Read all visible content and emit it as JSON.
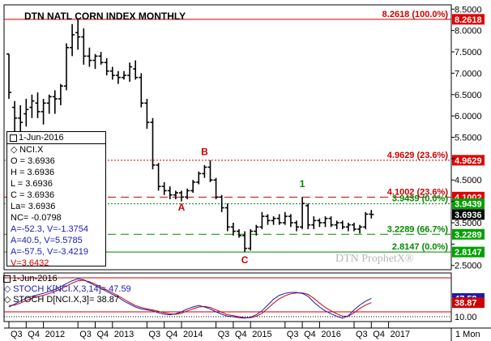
{
  "chart_data": {
    "type": "ohlc",
    "title": "DTN NATL CORN INDEX MONTHLY",
    "watermark": "DTN ProphetX®",
    "y_ticks": [
      2.5,
      3.0,
      3.5,
      4.0,
      4.5,
      5.0,
      5.5,
      6.0,
      6.5,
      7.0,
      7.5,
      8.0,
      8.5
    ],
    "y_tick_labels": [
      "2.5000",
      "3.0000",
      "3.5000",
      "4.0000",
      "4.5000",
      "5.0000",
      "5.5000",
      "6.0000",
      "6.5000",
      "7.0000",
      "7.5000",
      "8.0000",
      "8.5000"
    ],
    "ylim": [
      2.4,
      8.6
    ],
    "x_ticks": [
      {
        "label": "Q3",
        "index": 0
      },
      {
        "label": "Q4",
        "index": 3
      },
      {
        "label": "2012",
        "index": 6
      },
      {
        "label": "Q3",
        "index": 12
      },
      {
        "label": "Q4",
        "index": 15
      },
      {
        "label": "2013",
        "index": 18
      },
      {
        "label": "Q3",
        "index": 24
      },
      {
        "label": "Q4",
        "index": 27
      },
      {
        "label": "2014",
        "index": 30
      },
      {
        "label": "Q3",
        "index": 36
      },
      {
        "label": "Q4",
        "index": 39
      },
      {
        "label": "2015",
        "index": 42
      },
      {
        "label": "Q3",
        "index": 48
      },
      {
        "label": "Q4",
        "index": 51
      },
      {
        "label": "2016",
        "index": 54
      },
      {
        "label": "Q3",
        "index": 60
      },
      {
        "label": "Q4",
        "index": 63
      },
      {
        "label": "2017",
        "index": 66
      }
    ],
    "period_label": "1 Mon",
    "bars": [
      {
        "o": 7.45,
        "h": 7.45,
        "l": 6.4,
        "c": 6.55
      },
      {
        "o": 6.2,
        "h": 6.35,
        "l": 5.6,
        "c": 5.95
      },
      {
        "o": 5.95,
        "h": 6.25,
        "l": 5.6,
        "c": 5.85
      },
      {
        "o": 6.05,
        "h": 6.4,
        "l": 5.75,
        "c": 6.15
      },
      {
        "o": 6.2,
        "h": 6.5,
        "l": 5.95,
        "c": 6.35
      },
      {
        "o": 6.3,
        "h": 6.55,
        "l": 5.95,
        "c": 6.1
      },
      {
        "o": 6.1,
        "h": 6.4,
        "l": 5.8,
        "c": 6.3
      },
      {
        "o": 6.3,
        "h": 6.5,
        "l": 6.05,
        "c": 6.45
      },
      {
        "o": 6.45,
        "h": 6.6,
        "l": 6.05,
        "c": 6.4
      },
      {
        "o": 6.4,
        "h": 6.75,
        "l": 6.25,
        "c": 6.7
      },
      {
        "o": 6.7,
        "h": 7.7,
        "l": 6.6,
        "c": 7.6
      },
      {
        "o": 7.6,
        "h": 8.15,
        "l": 7.4,
        "c": 7.9
      },
      {
        "o": 7.95,
        "h": 8.2618,
        "l": 7.55,
        "c": 7.85
      },
      {
        "o": 7.85,
        "h": 8.05,
        "l": 7.2,
        "c": 7.4
      },
      {
        "o": 7.4,
        "h": 7.6,
        "l": 7.15,
        "c": 7.3
      },
      {
        "o": 7.3,
        "h": 7.45,
        "l": 7.1,
        "c": 7.4
      },
      {
        "o": 7.4,
        "h": 7.5,
        "l": 7.2,
        "c": 7.25
      },
      {
        "o": 7.25,
        "h": 7.35,
        "l": 6.95,
        "c": 7.05
      },
      {
        "o": 7.05,
        "h": 7.15,
        "l": 6.85,
        "c": 6.95
      },
      {
        "o": 6.95,
        "h": 7.05,
        "l": 6.75,
        "c": 6.9
      },
      {
        "o": 6.9,
        "h": 7.05,
        "l": 6.85,
        "c": 6.95
      },
      {
        "o": 6.95,
        "h": 7.25,
        "l": 6.8,
        "c": 7.15
      },
      {
        "o": 7.1,
        "h": 7.3,
        "l": 6.85,
        "c": 6.9
      },
      {
        "o": 6.9,
        "h": 7.0,
        "l": 6.2,
        "c": 6.3
      },
      {
        "o": 6.3,
        "h": 6.4,
        "l": 5.7,
        "c": 5.85
      },
      {
        "o": 5.85,
        "h": 5.95,
        "l": 4.75,
        "c": 4.85
      },
      {
        "o": 4.85,
        "h": 4.9,
        "l": 4.25,
        "c": 4.35
      },
      {
        "o": 4.35,
        "h": 4.45,
        "l": 4.15,
        "c": 4.25
      },
      {
        "o": 4.25,
        "h": 4.35,
        "l": 4.05,
        "c": 4.15
      },
      {
        "o": 4.15,
        "h": 4.25,
        "l": 4.05,
        "c": 4.2
      },
      {
        "o": 4.2,
        "h": 4.25,
        "l": 4.0,
        "c": 4.1
      },
      {
        "o": 4.1,
        "h": 4.3,
        "l": 4.05,
        "c": 4.25
      },
      {
        "o": 4.25,
        "h": 4.5,
        "l": 4.2,
        "c": 4.45
      },
      {
        "o": 4.45,
        "h": 4.7,
        "l": 4.4,
        "c": 4.65
      },
      {
        "o": 4.65,
        "h": 4.85,
        "l": 4.55,
        "c": 4.8
      },
      {
        "o": 4.8,
        "h": 4.9629,
        "l": 4.45,
        "c": 4.5
      },
      {
        "o": 4.5,
        "h": 4.55,
        "l": 4.05,
        "c": 4.1
      },
      {
        "o": 4.1,
        "h": 4.15,
        "l": 3.75,
        "c": 3.85
      },
      {
        "o": 3.85,
        "h": 3.95,
        "l": 3.3,
        "c": 3.4
      },
      {
        "o": 3.4,
        "h": 3.5,
        "l": 3.2,
        "c": 3.3
      },
      {
        "o": 3.3,
        "h": 3.35,
        "l": 3.15,
        "c": 3.2
      },
      {
        "o": 3.2,
        "h": 3.3,
        "l": 2.8147,
        "c": 2.9
      },
      {
        "o": 2.9,
        "h": 3.35,
        "l": 2.85,
        "c": 3.3
      },
      {
        "o": 3.3,
        "h": 3.45,
        "l": 3.2,
        "c": 3.4
      },
      {
        "o": 3.4,
        "h": 3.75,
        "l": 3.35,
        "c": 3.65
      },
      {
        "o": 3.65,
        "h": 3.7,
        "l": 3.45,
        "c": 3.55
      },
      {
        "o": 3.55,
        "h": 3.65,
        "l": 3.45,
        "c": 3.6
      },
      {
        "o": 3.6,
        "h": 3.7,
        "l": 3.45,
        "c": 3.5
      },
      {
        "o": 3.5,
        "h": 3.75,
        "l": 3.45,
        "c": 3.65
      },
      {
        "o": 3.65,
        "h": 3.7,
        "l": 3.4,
        "c": 3.5
      },
      {
        "o": 3.5,
        "h": 3.55,
        "l": 3.3,
        "c": 3.4
      },
      {
        "o": 3.4,
        "h": 4.1002,
        "l": 3.35,
        "c": 3.95
      },
      {
        "o": 3.9,
        "h": 3.95,
        "l": 3.35,
        "c": 3.45
      },
      {
        "o": 3.45,
        "h": 3.65,
        "l": 3.35,
        "c": 3.55
      },
      {
        "o": 3.55,
        "h": 3.6,
        "l": 3.4,
        "c": 3.5
      },
      {
        "o": 3.5,
        "h": 3.65,
        "l": 3.4,
        "c": 3.6
      },
      {
        "o": 3.6,
        "h": 3.65,
        "l": 3.4,
        "c": 3.45
      },
      {
        "o": 3.45,
        "h": 3.55,
        "l": 3.35,
        "c": 3.5
      },
      {
        "o": 3.5,
        "h": 3.55,
        "l": 3.35,
        "c": 3.4
      },
      {
        "o": 3.4,
        "h": 3.5,
        "l": 3.3,
        "c": 3.45
      },
      {
        "o": 3.45,
        "h": 3.5,
        "l": 3.3,
        "c": 3.35
      },
      {
        "o": 3.35,
        "h": 3.45,
        "l": 3.25,
        "c": 3.4
      },
      {
        "o": 3.4,
        "h": 3.75,
        "l": 3.35,
        "c": 3.7
      },
      {
        "o": 3.7,
        "h": 3.8,
        "l": 3.6,
        "c": 3.6936
      }
    ],
    "levels": [
      {
        "value": 8.2618,
        "label": "8.2618 (100.0%)",
        "axis_label": "8.2618",
        "color": "#cc0000",
        "style": "solid",
        "text_color": "#cc0000",
        "box_color": "#e00000"
      },
      {
        "value": 4.9629,
        "label": "4.9629 (23.6%)",
        "axis_label": "4.9629",
        "color": "#cc0000",
        "style": "dotted",
        "text_color": "#cc0000",
        "box_color": "#e00000"
      },
      {
        "value": 4.1002,
        "label": "4.1002 (23.6%)",
        "axis_label": "4.1002",
        "color": "#cc0000",
        "style": "longdash",
        "text_color": "#cc0000",
        "box_color": "#e00000"
      },
      {
        "value": 3.9439,
        "label": "3.9439 (0.0%)",
        "axis_label": "3.9439",
        "color": "#008800",
        "style": "dotted",
        "text_color": "#008800",
        "box_color": "#00a000"
      },
      {
        "value": 3.2289,
        "label": "3.2289 (66.7%)",
        "axis_label": "3.2289",
        "color": "#008800",
        "style": "longdash",
        "text_color": "#008800",
        "box_color": "#00a000"
      },
      {
        "value": 2.8147,
        "label": "2.8147 (0.0%)",
        "axis_label": "2.8147",
        "color": "#008800",
        "style": "solid",
        "text_color": "#008800",
        "box_color": "#00a000"
      }
    ],
    "last_price_label": "3.6936",
    "annotations": [
      {
        "text": "B",
        "bar": 34,
        "price": 5.08,
        "color": "#cc0000"
      },
      {
        "text": "A",
        "bar": 30,
        "price": 3.78,
        "color": "#cc0000"
      },
      {
        "text": "C",
        "bar": 41,
        "price": 2.55,
        "color": "#cc0000"
      },
      {
        "text": "1",
        "bar": 51,
        "price": 4.33,
        "color": "#008800"
      }
    ],
    "stochastic": {
      "ylim": [
        0,
        100
      ],
      "tick_value": 10,
      "tick_label": "10.00",
      "upper_band": 90,
      "lower_band": 20,
      "k_last_label": "47.59",
      "d_last_label": "38.87",
      "k_color": "#1a1ab8",
      "d_color": "#cc0000",
      "k": [
        30,
        36,
        42,
        48,
        52,
        55,
        58,
        62,
        66,
        72,
        78,
        84,
        88,
        86,
        80,
        74,
        68,
        62,
        56,
        50,
        42,
        36,
        30,
        26,
        24,
        22,
        18,
        15,
        14,
        16,
        20,
        26,
        30,
        33,
        30,
        26,
        20,
        15,
        11,
        10,
        8,
        7,
        9,
        14,
        22,
        34,
        46,
        54,
        58,
        60,
        60,
        58,
        52,
        40,
        30,
        22,
        16,
        11,
        7,
        12,
        24,
        34,
        42,
        47.59
      ],
      "d": [
        33,
        34,
        38,
        43,
        48,
        51,
        54,
        58,
        62,
        67,
        73,
        79,
        84,
        85,
        82,
        77,
        71,
        65,
        59,
        53,
        46,
        39,
        33,
        29,
        26,
        24,
        21,
        18,
        16,
        15,
        17,
        22,
        26,
        30,
        31,
        29,
        24,
        19,
        14,
        12,
        10,
        8,
        8,
        11,
        17,
        27,
        38,
        47,
        53,
        57,
        59,
        59,
        56,
        48,
        38,
        29,
        22,
        16,
        11,
        11,
        18,
        27,
        34,
        38.87
      ]
    }
  },
  "info_box": {
    "date": "1-Jun-2016",
    "symbol": "NCI.X",
    "open": "O = 3.6936",
    "high": "H = 3.6936",
    "low": "L = 3.6936",
    "close": "C = 3.6936",
    "last": "La= 3.6936",
    "net_change": "NC= -0.0798",
    "line_a1": "A=-52.3, V=-1.3754",
    "line_a2": "A=40.5, V=5.5785",
    "line_a3": "A=-57.5, V=-3.4219",
    "line_v": "V=3.6432",
    "blue": "#1a1ab8",
    "red": "#cc0000"
  },
  "stoch_legend": {
    "date": "1-Jun-2016",
    "k_text": "STOCH K[NCI.X,3,14]= 47.59",
    "d_text": "STOCH D[NCI.X,3]= 38.87"
  }
}
